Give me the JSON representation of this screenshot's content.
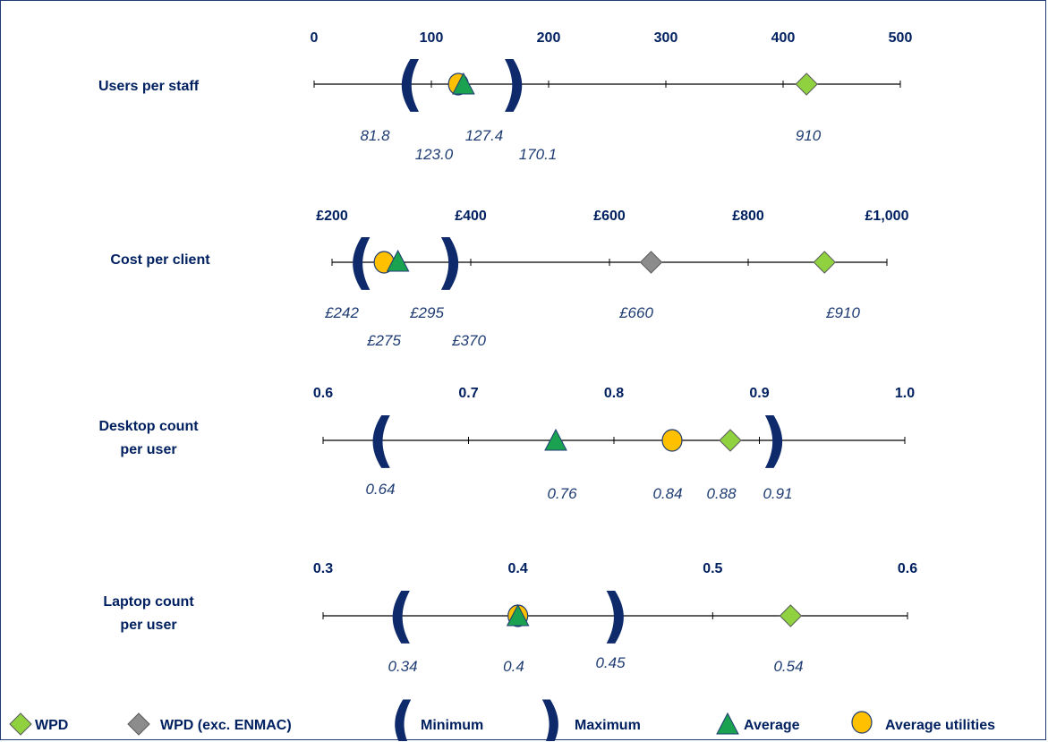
{
  "colors": {
    "text": "#002060",
    "wpd": "#8fd13f",
    "wpd_exc": "#8c8c8c",
    "average": "#1aa251",
    "average_utilities": "#ffc000",
    "bracket": "#0e2a6b"
  },
  "chart_data": {
    "type": "scatter",
    "subtype": "range-dot-plot",
    "rows": [
      {
        "label": [
          "Users per staff"
        ],
        "ticks": [
          "0",
          "100",
          "200",
          "300",
          "400",
          "500"
        ],
        "axis_min": 0,
        "axis_max": 500,
        "min": 81.8,
        "max": 170.1,
        "average": 127.4,
        "average_utilities": 123.0,
        "wpd": 910,
        "wpd_plot": 420,
        "labels": {
          "min": "81.8",
          "average_utilities": "123.0",
          "average": "127.4",
          "max": "170.1",
          "wpd": "910"
        }
      },
      {
        "label": [
          "Cost per client"
        ],
        "ticks": [
          "£200",
          "£400",
          "£600",
          "£800",
          "£1,000"
        ],
        "axis_min": 200,
        "axis_max": 1000,
        "min": 242,
        "max": 370,
        "average": 295,
        "average_utilities": 275,
        "wpd": 910,
        "wpd_exc": 660,
        "labels": {
          "min": "£242",
          "average_utilities": "£275",
          "average": "£295",
          "max": "£370",
          "wpd_exc": "£660",
          "wpd": "£910"
        }
      },
      {
        "label": [
          "Desktop count",
          "per user"
        ],
        "ticks": [
          "0.6",
          "0.7",
          "0.8",
          "0.9",
          "1.0"
        ],
        "axis_min": 0.6,
        "axis_max": 1.0,
        "min": 0.64,
        "max": 0.91,
        "average": 0.76,
        "average_utilities": 0.84,
        "wpd": 0.88,
        "labels": {
          "min": "0.64",
          "average": "0.76",
          "average_utilities": "0.84",
          "wpd": "0.88",
          "max": "0.91"
        }
      },
      {
        "label": [
          "Laptop count",
          "per user"
        ],
        "ticks": [
          "0.3",
          "0.4",
          "0.5",
          "0.6"
        ],
        "axis_min": 0.3,
        "axis_max": 0.6,
        "min": 0.34,
        "max": 0.45,
        "average": 0.4,
        "average_utilities": 0.4,
        "wpd": 0.54,
        "labels": {
          "min": "0.34",
          "average": "0.4",
          "max": "0.45",
          "wpd": "0.54"
        }
      }
    ],
    "legend": [
      {
        "key": "wpd",
        "label": "WPD"
      },
      {
        "key": "wpd_exc",
        "label": "WPD (exc. ENMAC)"
      },
      {
        "key": "min",
        "label": "Minimum"
      },
      {
        "key": "max",
        "label": "Maximum"
      },
      {
        "key": "average",
        "label": "Average"
      },
      {
        "key": "average_utilities",
        "label": "Average utilities"
      }
    ],
    "legend_position": "bottom"
  }
}
